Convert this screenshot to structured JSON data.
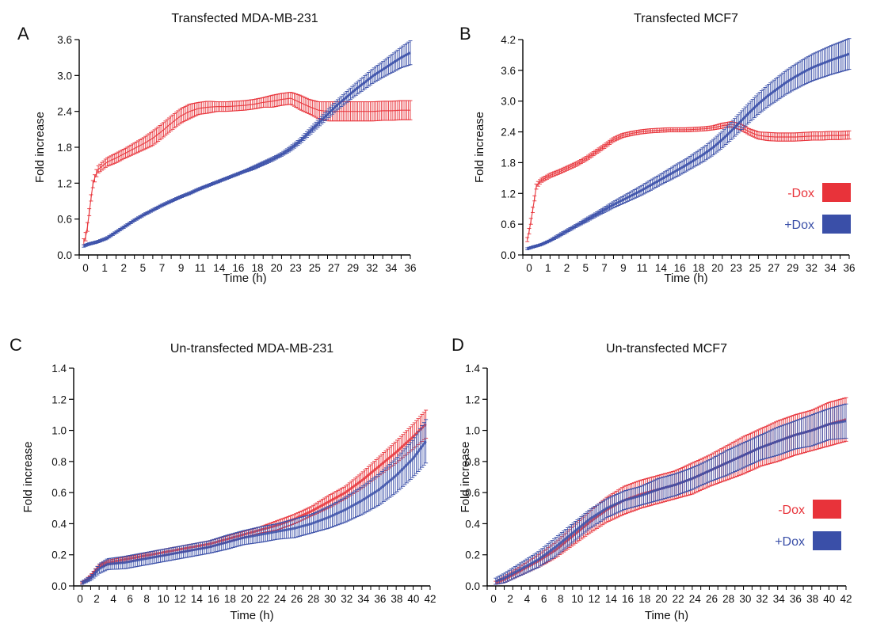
{
  "colors": {
    "minus_dox": "#e8333a",
    "plus_dox": "#3a4fa8",
    "axis": "#000000"
  },
  "chart_data": [
    {
      "panel": "A",
      "type": "line",
      "title": "Transfected MDA-MB-231",
      "xlabel": "Time (h)",
      "ylabel": "Fold increase",
      "xlim": [
        0,
        36
      ],
      "ylim": [
        0,
        3.6
      ],
      "x_ticks": [
        0,
        1,
        2,
        3,
        4,
        5,
        6,
        7,
        8,
        9,
        10,
        11,
        12,
        13,
        14,
        15,
        16,
        17,
        18,
        19,
        20,
        21,
        22,
        23,
        24,
        25,
        26,
        27,
        28,
        29,
        30,
        31,
        32,
        33,
        34,
        35,
        36
      ],
      "x_tick_labels": [
        "0",
        "1",
        "2",
        "5",
        "7",
        "9",
        "11",
        "14",
        "16",
        "18",
        "20",
        "23",
        "25",
        "27",
        "29",
        "32",
        "34",
        "36"
      ],
      "y_ticks": [
        "0.0",
        "0.6",
        "1.2",
        "1.8",
        "2.4",
        "3.0",
        "3.6"
      ],
      "grid": false,
      "legend": null,
      "series": [
        {
          "label": "-Dox",
          "color": "#e8333a",
          "x": [
            0.5,
            0.8,
            1.2,
            1.5,
            2,
            3,
            4,
            5,
            6,
            7,
            8,
            9,
            10,
            11,
            12,
            13,
            14,
            15,
            16,
            17,
            18,
            19,
            20,
            21,
            22,
            23,
            24,
            25,
            26,
            27,
            28,
            29,
            30,
            31,
            32,
            33,
            34,
            35,
            36
          ],
          "y": [
            0.22,
            0.35,
            0.85,
            1.2,
            1.42,
            1.55,
            1.62,
            1.7,
            1.78,
            1.86,
            1.95,
            2.07,
            2.2,
            2.32,
            2.4,
            2.45,
            2.47,
            2.48,
            2.48,
            2.49,
            2.5,
            2.52,
            2.55,
            2.57,
            2.6,
            2.62,
            2.55,
            2.48,
            2.42,
            2.4,
            2.4,
            2.4,
            2.4,
            2.4,
            2.4,
            2.41,
            2.41,
            2.42,
            2.42
          ],
          "err": [
            0.05,
            0.08,
            0.05,
            0.06,
            0.06,
            0.07,
            0.08,
            0.08,
            0.09,
            0.1,
            0.12,
            0.12,
            0.12,
            0.12,
            0.12,
            0.1,
            0.1,
            0.08,
            0.08,
            0.08,
            0.08,
            0.08,
            0.08,
            0.1,
            0.1,
            0.1,
            0.12,
            0.12,
            0.14,
            0.16,
            0.16,
            0.16,
            0.16,
            0.16,
            0.16,
            0.16,
            0.16,
            0.16,
            0.16
          ]
        },
        {
          "label": "+Dox",
          "color": "#3a4fa8",
          "x": [
            0.5,
            1,
            2,
            3,
            4,
            5,
            6,
            7,
            8,
            9,
            10,
            11,
            12,
            13,
            14,
            15,
            16,
            17,
            18,
            19,
            20,
            21,
            22,
            23,
            24,
            25,
            26,
            27,
            28,
            29,
            30,
            31,
            32,
            33,
            34,
            35,
            36
          ],
          "y": [
            0.15,
            0.18,
            0.22,
            0.28,
            0.38,
            0.48,
            0.58,
            0.67,
            0.75,
            0.83,
            0.9,
            0.97,
            1.03,
            1.1,
            1.16,
            1.22,
            1.28,
            1.34,
            1.4,
            1.46,
            1.53,
            1.6,
            1.68,
            1.78,
            1.9,
            2.05,
            2.2,
            2.35,
            2.5,
            2.63,
            2.76,
            2.88,
            3.0,
            3.1,
            3.2,
            3.3,
            3.38
          ],
          "err": [
            0.02,
            0.02,
            0.02,
            0.02,
            0.02,
            0.02,
            0.02,
            0.02,
            0.02,
            0.02,
            0.02,
            0.02,
            0.02,
            0.02,
            0.02,
            0.02,
            0.02,
            0.02,
            0.02,
            0.03,
            0.03,
            0.03,
            0.03,
            0.04,
            0.04,
            0.05,
            0.06,
            0.07,
            0.08,
            0.09,
            0.1,
            0.11,
            0.12,
            0.13,
            0.15,
            0.17,
            0.2
          ]
        }
      ]
    },
    {
      "panel": "B",
      "type": "line",
      "title": "Transfected MCF7",
      "xlabel": "Time (h)",
      "ylabel": "Fold increase",
      "xlim": [
        0,
        36
      ],
      "ylim": [
        0,
        4.2
      ],
      "x_ticks": [
        0,
        1,
        2,
        3,
        4,
        5,
        6,
        7,
        8,
        9,
        10,
        11,
        12,
        13,
        14,
        15,
        16,
        17,
        18,
        19,
        20,
        21,
        22,
        23,
        24,
        25,
        26,
        27,
        28,
        29,
        30,
        31,
        32,
        33,
        34,
        35,
        36
      ],
      "x_tick_labels": [
        "0",
        "1",
        "2",
        "5",
        "7",
        "9",
        "11",
        "14",
        "16",
        "18",
        "20",
        "23",
        "25",
        "27",
        "29",
        "32",
        "34",
        "36"
      ],
      "y_ticks": [
        "0.0",
        "0.6",
        "1.2",
        "1.8",
        "2.4",
        "3.0",
        "3.6",
        "4.2"
      ],
      "grid": false,
      "legend": "right",
      "series": [
        {
          "label": "-Dox",
          "color": "#e8333a",
          "x": [
            0.5,
            0.8,
            1.2,
            1.5,
            2,
            3,
            4,
            5,
            6,
            7,
            8,
            9,
            10,
            11,
            12,
            13,
            14,
            15,
            16,
            17,
            18,
            19,
            20,
            21,
            22,
            23,
            24,
            25,
            26,
            27,
            28,
            29,
            30,
            31,
            32,
            33,
            34,
            35,
            36
          ],
          "y": [
            0.3,
            0.55,
            1.0,
            1.35,
            1.45,
            1.55,
            1.62,
            1.7,
            1.78,
            1.88,
            2.0,
            2.12,
            2.25,
            2.33,
            2.37,
            2.4,
            2.42,
            2.43,
            2.44,
            2.44,
            2.44,
            2.45,
            2.46,
            2.48,
            2.52,
            2.55,
            2.5,
            2.4,
            2.33,
            2.31,
            2.3,
            2.3,
            2.3,
            2.31,
            2.32,
            2.32,
            2.33,
            2.33,
            2.34
          ],
          "err": [
            0.04,
            0.06,
            0.05,
            0.05,
            0.04,
            0.04,
            0.04,
            0.04,
            0.04,
            0.04,
            0.04,
            0.04,
            0.04,
            0.04,
            0.04,
            0.04,
            0.04,
            0.04,
            0.04,
            0.04,
            0.04,
            0.04,
            0.04,
            0.04,
            0.05,
            0.05,
            0.06,
            0.06,
            0.07,
            0.08,
            0.08,
            0.08,
            0.08,
            0.08,
            0.08,
            0.08,
            0.08,
            0.08,
            0.08
          ]
        },
        {
          "label": "+Dox",
          "color": "#3a4fa8",
          "x": [
            0.5,
            1,
            2,
            3,
            4,
            5,
            6,
            7,
            8,
            9,
            10,
            11,
            12,
            13,
            14,
            15,
            16,
            17,
            18,
            19,
            20,
            21,
            22,
            23,
            24,
            25,
            26,
            27,
            28,
            29,
            30,
            31,
            32,
            33,
            34,
            35,
            36
          ],
          "y": [
            0.12,
            0.15,
            0.2,
            0.28,
            0.38,
            0.48,
            0.58,
            0.68,
            0.78,
            0.88,
            0.98,
            1.07,
            1.16,
            1.25,
            1.35,
            1.45,
            1.55,
            1.65,
            1.75,
            1.86,
            1.97,
            2.1,
            2.25,
            2.42,
            2.6,
            2.78,
            2.95,
            3.1,
            3.23,
            3.36,
            3.47,
            3.57,
            3.66,
            3.73,
            3.8,
            3.86,
            3.92
          ],
          "err": [
            0.02,
            0.02,
            0.02,
            0.02,
            0.03,
            0.03,
            0.03,
            0.04,
            0.04,
            0.05,
            0.06,
            0.07,
            0.08,
            0.09,
            0.1,
            0.1,
            0.11,
            0.12,
            0.12,
            0.13,
            0.14,
            0.15,
            0.16,
            0.17,
            0.18,
            0.19,
            0.2,
            0.21,
            0.22,
            0.23,
            0.24,
            0.25,
            0.26,
            0.27,
            0.28,
            0.29,
            0.3
          ]
        }
      ]
    },
    {
      "panel": "C",
      "type": "line",
      "title": "Un-transfected MDA-MB-231",
      "xlabel": "Time (h)",
      "ylabel": "Fold increase",
      "xlim": [
        0,
        42
      ],
      "ylim": [
        0,
        1.4
      ],
      "x_ticks": [
        0,
        1,
        2,
        3,
        4,
        5,
        6,
        7,
        8,
        9,
        10,
        11,
        12,
        13,
        14,
        15,
        16,
        17,
        18,
        19,
        20,
        21,
        22,
        23,
        24,
        25,
        26,
        27,
        28,
        29,
        30,
        31,
        32,
        33,
        34,
        35,
        36,
        37,
        38,
        39,
        40,
        41,
        42
      ],
      "x_tick_labels": [
        "0",
        "2",
        "4",
        "6",
        "8",
        "10",
        "12",
        "14",
        "16",
        "18",
        "20",
        "22",
        "24",
        "26",
        "28",
        "30",
        "32",
        "34",
        "36",
        "38",
        "40",
        "42"
      ],
      "y_ticks": [
        "0.0",
        "0.2",
        "0.4",
        "0.6",
        "0.8",
        "1.0",
        "1.2",
        "1.4"
      ],
      "grid": false,
      "legend": null,
      "series": [
        {
          "label": "-Dox",
          "color": "#e8333a",
          "x": [
            1,
            2,
            3,
            4,
            6,
            8,
            10,
            12,
            14,
            16,
            18,
            20,
            22,
            24,
            26,
            28,
            30,
            32,
            34,
            36,
            38,
            40,
            41.5
          ],
          "y": [
            0.02,
            0.06,
            0.13,
            0.15,
            0.17,
            0.19,
            0.21,
            0.23,
            0.25,
            0.27,
            0.3,
            0.33,
            0.36,
            0.39,
            0.43,
            0.48,
            0.54,
            0.6,
            0.68,
            0.77,
            0.86,
            0.96,
            1.04
          ],
          "err": [
            0.005,
            0.01,
            0.01,
            0.015,
            0.015,
            0.015,
            0.02,
            0.02,
            0.02,
            0.02,
            0.02,
            0.02,
            0.02,
            0.03,
            0.03,
            0.03,
            0.04,
            0.04,
            0.05,
            0.06,
            0.07,
            0.08,
            0.09
          ]
        },
        {
          "label": "+Dox",
          "color": "#3a4fa8",
          "x": [
            1,
            2,
            3,
            4,
            6,
            8,
            10,
            12,
            14,
            16,
            18,
            20,
            22,
            24,
            26,
            28,
            30,
            32,
            34,
            36,
            38,
            40,
            41.5
          ],
          "y": [
            0.02,
            0.05,
            0.11,
            0.14,
            0.15,
            0.17,
            0.19,
            0.21,
            0.23,
            0.25,
            0.28,
            0.31,
            0.33,
            0.35,
            0.37,
            0.4,
            0.44,
            0.49,
            0.55,
            0.62,
            0.71,
            0.82,
            0.93
          ],
          "err": [
            0.01,
            0.015,
            0.03,
            0.035,
            0.04,
            0.04,
            0.04,
            0.04,
            0.04,
            0.04,
            0.045,
            0.045,
            0.05,
            0.05,
            0.06,
            0.06,
            0.07,
            0.08,
            0.09,
            0.1,
            0.11,
            0.12,
            0.14
          ]
        }
      ]
    },
    {
      "panel": "D",
      "type": "line",
      "title": "Un-transfected MCF7",
      "xlabel": "Time (h)",
      "ylabel": "Fold increase",
      "xlim": [
        0,
        42
      ],
      "ylim": [
        0,
        1.4
      ],
      "x_ticks": [
        0,
        1,
        2,
        3,
        4,
        5,
        6,
        7,
        8,
        9,
        10,
        11,
        12,
        13,
        14,
        15,
        16,
        17,
        18,
        19,
        20,
        21,
        22,
        23,
        24,
        25,
        26,
        27,
        28,
        29,
        30,
        31,
        32,
        33,
        34,
        35,
        36,
        37,
        38,
        39,
        40,
        41,
        42
      ],
      "x_tick_labels": [
        "0",
        "2",
        "4",
        "6",
        "8",
        "10",
        "12",
        "14",
        "16",
        "18",
        "20",
        "22",
        "24",
        "26",
        "28",
        "30",
        "32",
        "34",
        "36",
        "38",
        "40",
        "42"
      ],
      "y_ticks": [
        "0.0",
        "0.2",
        "0.4",
        "0.6",
        "0.8",
        "1.0",
        "1.2",
        "1.4"
      ],
      "grid": false,
      "legend": "right",
      "series": [
        {
          "label": "-Dox",
          "color": "#e8333a",
          "x": [
            1,
            2,
            4,
            6,
            8,
            10,
            12,
            14,
            16,
            18,
            20,
            22,
            24,
            26,
            28,
            30,
            32,
            34,
            36,
            38,
            40,
            42
          ],
          "y": [
            0.02,
            0.04,
            0.1,
            0.16,
            0.23,
            0.32,
            0.41,
            0.49,
            0.55,
            0.59,
            0.62,
            0.65,
            0.69,
            0.74,
            0.79,
            0.84,
            0.89,
            0.93,
            0.97,
            1.0,
            1.04,
            1.07
          ],
          "err": [
            0.01,
            0.02,
            0.03,
            0.04,
            0.05,
            0.06,
            0.07,
            0.08,
            0.09,
            0.09,
            0.09,
            0.09,
            0.1,
            0.1,
            0.11,
            0.12,
            0.12,
            0.13,
            0.13,
            0.13,
            0.14,
            0.14
          ]
        },
        {
          "label": "+Dox",
          "color": "#3a4fa8",
          "x": [
            1,
            2,
            4,
            6,
            8,
            10,
            12,
            14,
            16,
            18,
            20,
            22,
            24,
            26,
            28,
            30,
            32,
            34,
            36,
            38,
            40,
            42
          ],
          "y": [
            0.03,
            0.05,
            0.11,
            0.17,
            0.25,
            0.34,
            0.43,
            0.5,
            0.55,
            0.58,
            0.62,
            0.65,
            0.69,
            0.74,
            0.79,
            0.84,
            0.89,
            0.93,
            0.97,
            1.0,
            1.04,
            1.06
          ],
          "err": [
            0.02,
            0.03,
            0.04,
            0.05,
            0.06,
            0.06,
            0.06,
            0.06,
            0.06,
            0.06,
            0.07,
            0.07,
            0.07,
            0.07,
            0.08,
            0.08,
            0.08,
            0.09,
            0.09,
            0.1,
            0.1,
            0.11
          ]
        }
      ]
    }
  ]
}
